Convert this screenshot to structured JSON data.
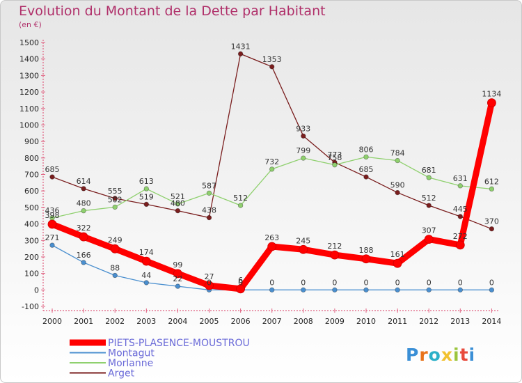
{
  "chart_data": {
    "type": "line",
    "title": "Evolution du Montant de la Dette par Habitant",
    "subtitle": "(en €)",
    "categories": [
      "2000",
      "2001",
      "2002",
      "2003",
      "2004",
      "2005",
      "2006",
      "2007",
      "2008",
      "2009",
      "2010",
      "2011",
      "2012",
      "2013",
      "2014"
    ],
    "ylim": [
      -100,
      1500
    ],
    "yticks": [
      "-100",
      "0",
      "100",
      "200",
      "300",
      "400",
      "500",
      "600",
      "700",
      "800",
      "900",
      "1000",
      "1100",
      "1200",
      "1300",
      "1400",
      "1500"
    ],
    "grid": false,
    "legend_position": "bottom-left",
    "series": [
      {
        "name": "Arget",
        "color": "#7a1e1e",
        "values": [
          685,
          614,
          555,
          519,
          480,
          438,
          1431,
          1353,
          933,
          773,
          685,
          590,
          512,
          445,
          370
        ],
        "labels": [
          "685",
          "614",
          "555",
          "519",
          "480",
          "438",
          "1431",
          "1353",
          "933",
          "773",
          "685",
          "590",
          "512",
          "445",
          "370"
        ]
      },
      {
        "name": "Morlanne",
        "color": "#8fd06e",
        "values": [
          436,
          480,
          502,
          613,
          521,
          587,
          512,
          732,
          799,
          758,
          806,
          784,
          681,
          631,
          612
        ],
        "labels": [
          "436",
          "480",
          "502",
          "613",
          "521",
          "587",
          "512",
          "732",
          "799",
          "758",
          "806",
          "784",
          "681",
          "631",
          "612"
        ]
      },
      {
        "name": "Montagut",
        "color": "#4a8fcf",
        "values": [
          271,
          166,
          88,
          44,
          22,
          0,
          0,
          0,
          0,
          0,
          0,
          0,
          0,
          0,
          0
        ],
        "labels": [
          "271",
          "166",
          "88",
          "44",
          "22",
          "0",
          "0",
          "0",
          "0",
          "0",
          "0",
          "0",
          "0",
          "0",
          "0"
        ]
      },
      {
        "name": "PIETS-PLASENCE-MOUSTROU",
        "color": "#ff0000",
        "values": [
          398,
          322,
          249,
          174,
          99,
          27,
          6,
          263,
          245,
          212,
          188,
          161,
          307,
          272,
          1134
        ],
        "labels": [
          "398",
          "322",
          "249",
          "174",
          "99",
          "27",
          "6",
          "263",
          "245",
          "212",
          "188",
          "161",
          "307",
          "272",
          "1134"
        ]
      }
    ],
    "legend": [
      "PIETS-PLASENCE-MOUSTROU",
      "Montagut",
      "Morlanne",
      "Arget"
    ]
  },
  "logo": {
    "text": "Proxiti",
    "colors": [
      "#3a8fd6",
      "#e8731a",
      "#2bb0c8",
      "#f2c230",
      "#9bc53d",
      "#e84a3c",
      "#3a8fd6"
    ]
  }
}
